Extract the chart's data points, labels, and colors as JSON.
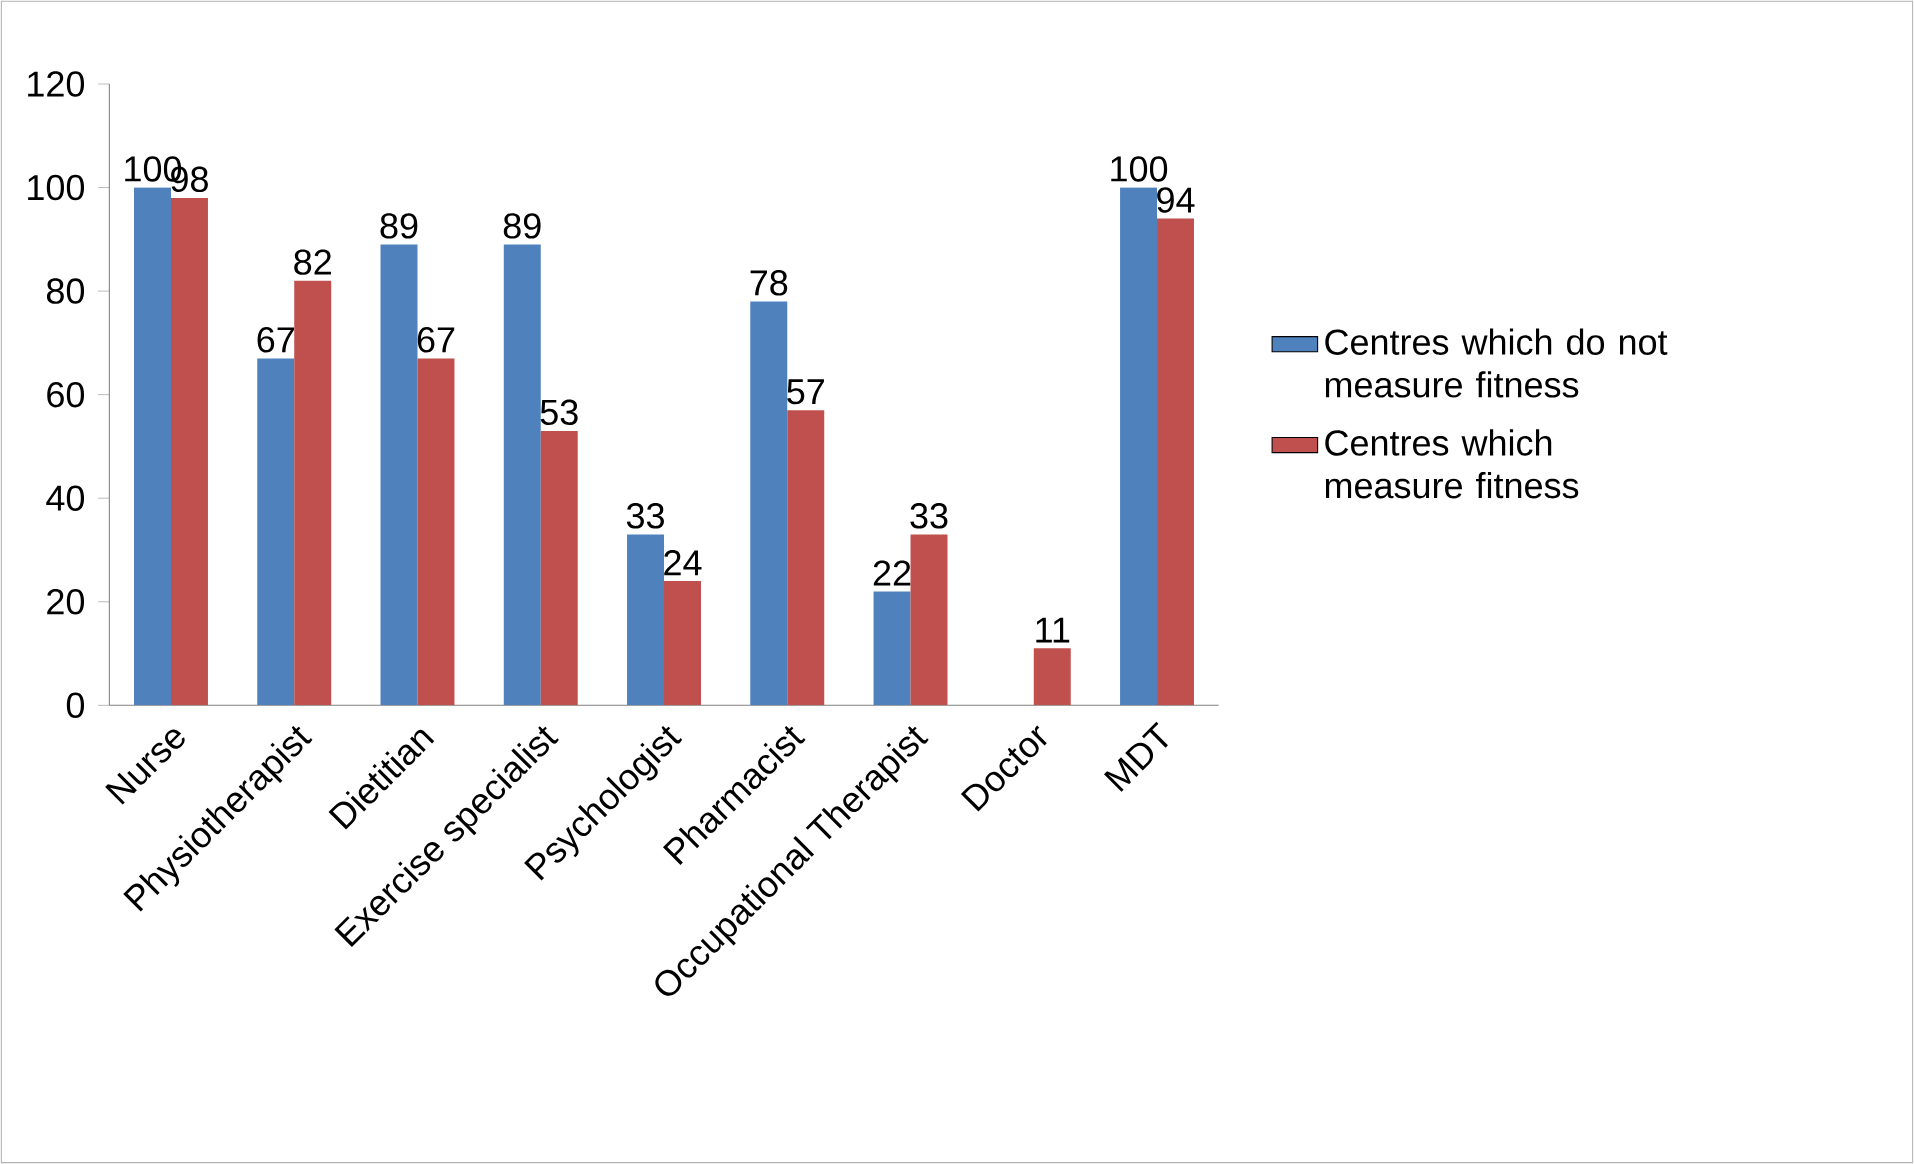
{
  "chart_data": {
    "type": "bar",
    "categories": [
      "Nurse",
      "Physiotherapist",
      "Dietitian",
      "Exercise specialist",
      "Psychologist",
      "Pharmacist",
      "Occupational Therapist",
      "Doctor",
      "MDT"
    ],
    "series": [
      {
        "name": "Centres which do not measure fitness",
        "color": "#4f81bd",
        "values": [
          100,
          67,
          89,
          89,
          33,
          78,
          22,
          null,
          100
        ],
        "value_labels": [
          "100",
          "67",
          "89",
          "89",
          "33",
          "78",
          "22",
          null,
          "100"
        ]
      },
      {
        "name": "Centres which measure fitness",
        "color": "#c0504d",
        "values": [
          98,
          82,
          67,
          53,
          24,
          57,
          33,
          11,
          94
        ],
        "value_labels": [
          "98",
          "82",
          "67",
          "53",
          "24",
          "57",
          "33",
          "11",
          "94"
        ]
      }
    ],
    "ylim": [
      0,
      120
    ],
    "yticks": [
      0,
      20,
      40,
      60,
      80,
      100,
      120
    ],
    "grid": false,
    "legend": "right"
  }
}
